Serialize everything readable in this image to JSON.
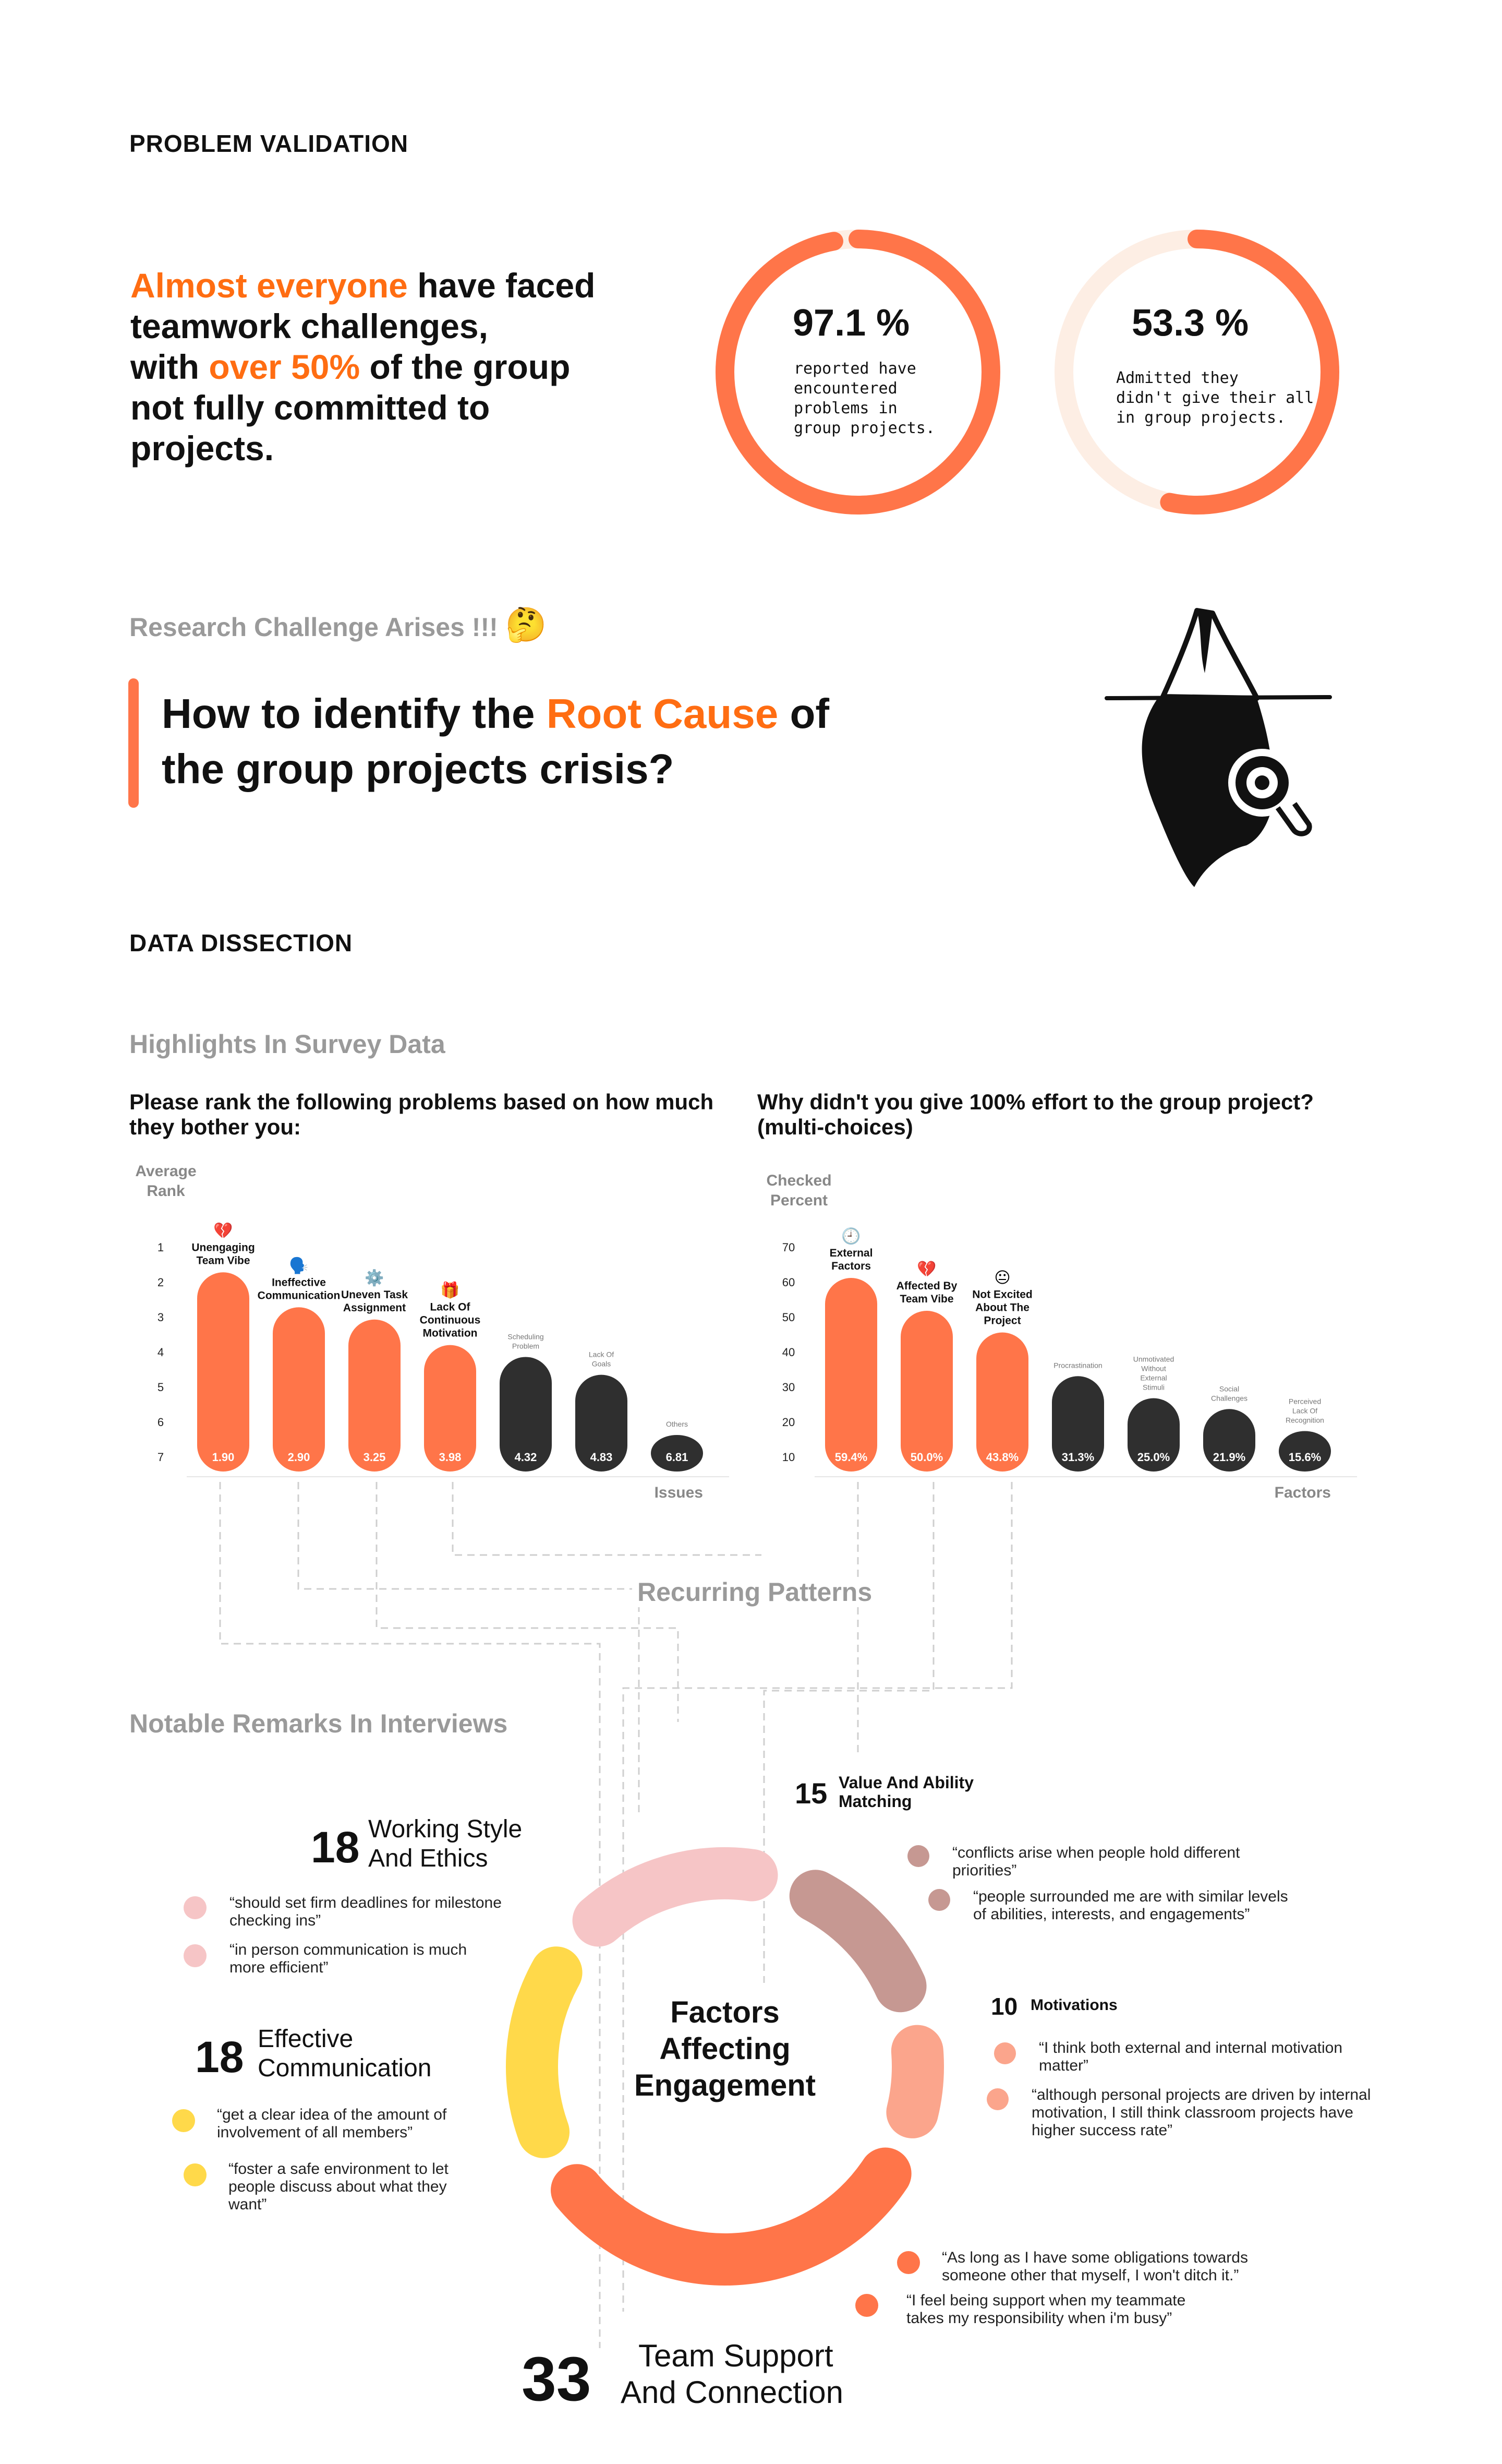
{
  "problem_validation": {
    "heading": "PROBLEM VALIDATION",
    "statement": {
      "part1": "Almost everyone",
      "part2": " have faced",
      "line2": "teamwork challenges,",
      "line3a": "with ",
      "line3b": "over 50%",
      "line3c": " of the group",
      "line4": "not fully committed to",
      "line5": "projects."
    },
    "stat1": {
      "value": "97.1 %",
      "fraction": 0.971,
      "lines": [
        "reported have",
        "encountered",
        "problems in",
        "group projects."
      ]
    },
    "stat2": {
      "value": "53.3 %",
      "fraction": 0.533,
      "lines": [
        "Admitted they",
        "didn't give their all",
        "in group projects."
      ]
    }
  },
  "research": {
    "subtitle": "Research Challenge Arises !!!",
    "emoji": "🤔",
    "question_a": "How to identify the ",
    "question_b": "Root Cause",
    "question_c": " of",
    "question_d": "the group projects crisis?"
  },
  "data_dissection": {
    "heading": "DATA DISSECTION",
    "highlights": "Highlights In Survey Data",
    "recurring": "Recurring Patterns",
    "notable": "Notable Remarks In Interviews"
  },
  "chart_data": [
    {
      "type": "bar",
      "title": "Please rank the following problems based on how much they bother you:",
      "ylabel": "Average Rank",
      "xlabel": "Issues",
      "ylim": [
        1,
        7
      ],
      "y_ticks": [
        "1",
        "2",
        "3",
        "4",
        "5",
        "6",
        "7"
      ],
      "categories": [
        "Unengaging Team Vibe",
        "Ineffective Communication",
        "Uneven Task Assignment",
        "Lack Of Continuous Motivation",
        "Scheduling Problem",
        "Lack Of Goals",
        "Others"
      ],
      "values": [
        1.9,
        2.9,
        3.25,
        3.98,
        4.32,
        4.83,
        6.81
      ],
      "value_labels": [
        "1.90",
        "2.90",
        "3.25",
        "3.98",
        "4.32",
        "4.83",
        "6.81"
      ],
      "icons": [
        "💔",
        "🗣️",
        "⚙️",
        "🎁",
        "",
        "",
        ""
      ],
      "highlighted": [
        true,
        true,
        true,
        true,
        false,
        false,
        false
      ],
      "colors": {
        "highlight": "#ff7549",
        "other": "#2f2f2f"
      }
    },
    {
      "type": "bar",
      "title": "Why didn't you give 100% effort to the group project? (multi-choices)",
      "ylabel": "Checked Percent",
      "xlabel": "Factors",
      "ylim": [
        10,
        70
      ],
      "y_ticks": [
        "70",
        "60",
        "50",
        "40",
        "30",
        "20",
        "10"
      ],
      "categories": [
        "External Factors",
        "Affected By Team Vibe",
        "Not Excited About The Project",
        "Procrastination",
        "Unmotivated Without External Stimuli",
        "Social Challenges",
        "Perceived Lack Of Recognition"
      ],
      "values": [
        59.4,
        50.0,
        43.8,
        31.3,
        25.0,
        21.9,
        15.6
      ],
      "value_labels": [
        "59.4%",
        "50.0%",
        "43.8%",
        "31.3%",
        "25.0%",
        "21.9%",
        "15.6%"
      ],
      "icons": [
        "🕘",
        "💔",
        "😐",
        "",
        "",
        "",
        ""
      ],
      "highlighted": [
        true,
        true,
        true,
        false,
        false,
        false,
        false
      ],
      "colors": {
        "highlight": "#ff7549",
        "other": "#2f2f2f"
      }
    },
    {
      "type": "pie",
      "title": "Factors Affecting Engagement",
      "categories": [
        "Value And Ability Matching",
        "Motivations",
        "Team Support And Connection",
        "Effective Communication",
        "Working Style And Ethics"
      ],
      "values": [
        15,
        10,
        33,
        18,
        18
      ],
      "colors": [
        "#c69892",
        "#fba58c",
        "#ff7549",
        "#ffd94a",
        "#f6c5c6"
      ]
    }
  ],
  "factors": {
    "center_title": [
      "Factors",
      "Affecting",
      "Engagement"
    ],
    "working": {
      "count": "18",
      "title": [
        "Working Style",
        "And Ethics"
      ],
      "color": "#f6c5c6",
      "quotes": [
        "“should set firm deadlines for milestone\nchecking ins”",
        "“in person communication is much\nmore efficient”"
      ]
    },
    "value": {
      "count": "15",
      "title": [
        "Value And Ability",
        "Matching"
      ],
      "color": "#c69892",
      "quotes": [
        "“conflicts arise when people hold different\npriorities”",
        "“people surrounded me are with similar levels\nof abilities, interests, and engagements”"
      ]
    },
    "motivations": {
      "count": "10",
      "title": [
        "Motivations"
      ],
      "color": "#fba58c",
      "quotes": [
        "“I think both external and internal motivation\nmatter”",
        "“although personal projects are driven by internal\nmotivation, I still think classroom projects have\nhigher success rate”"
      ]
    },
    "communication": {
      "count": "18",
      "title": [
        "Effective",
        "Communication"
      ],
      "color": "#ffd94a",
      "quotes": [
        "“get a clear idea of the amount of\ninvolvement of all members”",
        "“foster a safe environment to let\npeople discuss about what they\nwant”"
      ]
    },
    "support": {
      "count": "33",
      "title": [
        "Team Support",
        "And Connection"
      ],
      "color": "#ff7549",
      "quotes": [
        "“As long as I have some obligations towards\nsomeone other that myself, I won't ditch it.”",
        "“I feel being support when my teammate\ntakes my responsibility when i'm busy”"
      ]
    }
  }
}
